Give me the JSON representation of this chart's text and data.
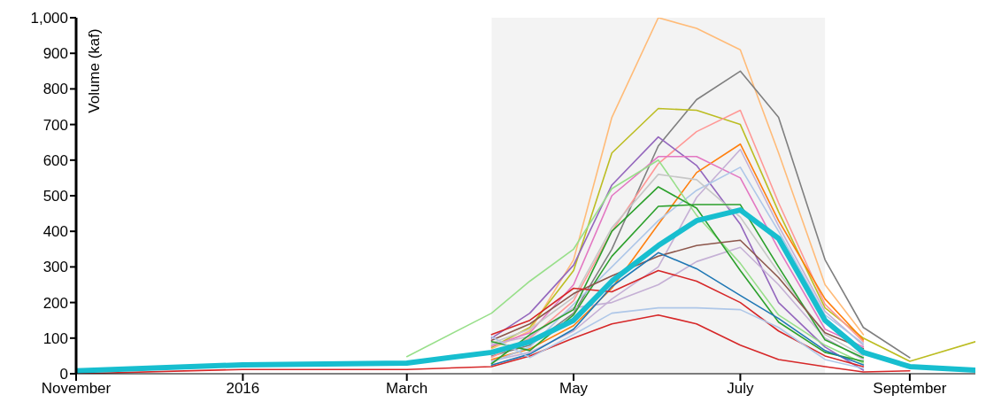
{
  "chart_data": {
    "type": "line",
    "ylabel": "Volume (kaf)",
    "x": [
      "2015-11-01",
      "2016-01-01",
      "2016-03-01",
      "2016-04-01",
      "2016-04-15",
      "2016-05-01",
      "2016-05-15",
      "2016-06-01",
      "2016-06-15",
      "2016-07-01",
      "2016-07-15",
      "2016-08-01",
      "2016-08-15",
      "2016-09-01",
      "2016-09-25"
    ],
    "xlim": [
      "2015-11-01",
      "2016-09-25"
    ],
    "xticks": [
      {
        "value": "2015-11-01",
        "label": "November"
      },
      {
        "value": "2016-01-01",
        "label": "2016"
      },
      {
        "value": "2016-03-01",
        "label": "March"
      },
      {
        "value": "2016-05-01",
        "label": "May"
      },
      {
        "value": "2016-07-01",
        "label": "July"
      },
      {
        "value": "2016-09-01",
        "label": "September"
      }
    ],
    "ylim": [
      0,
      1000
    ],
    "yticks": [
      0,
      100,
      200,
      300,
      400,
      500,
      600,
      700,
      800,
      900,
      {
        "value": 1000,
        "label": "1,000"
      }
    ],
    "grid": false,
    "bands": [
      {
        "axis": "x",
        "from": "2016-04-01",
        "to": "2016-08-01",
        "color": "#f3f3f3"
      }
    ],
    "series": [
      {
        "color": "#ffbb78",
        "values": [
          null,
          null,
          null,
          70,
          120,
          320,
          720,
          1000,
          970,
          910,
          620,
          250,
          110,
          null,
          null
        ]
      },
      {
        "color": "#7f7f7f",
        "values": [
          null,
          null,
          null,
          50,
          80,
          170,
          350,
          640,
          770,
          850,
          720,
          320,
          130,
          45,
          null
        ]
      },
      {
        "color": "#bcbd22",
        "values": [
          null,
          null,
          null,
          74,
          130,
          290,
          620,
          745,
          740,
          700,
          455,
          185,
          100,
          35,
          90
        ]
      },
      {
        "color": "#ff9896",
        "values": [
          null,
          null,
          null,
          46,
          100,
          205,
          400,
          590,
          680,
          740,
          480,
          195,
          90,
          null,
          null
        ]
      },
      {
        "color": "#9467bd",
        "values": [
          null,
          null,
          null,
          100,
          170,
          305,
          530,
          665,
          585,
          420,
          200,
          75,
          10,
          null,
          null
        ]
      },
      {
        "color": "#ff7f0e",
        "values": [
          null,
          null,
          null,
          40,
          70,
          135,
          240,
          420,
          565,
          645,
          430,
          210,
          95,
          null,
          null
        ]
      },
      {
        "color": "#e377c2",
        "values": [
          null,
          null,
          null,
          78,
          115,
          250,
          500,
          610,
          610,
          550,
          350,
          125,
          75,
          null,
          null
        ]
      },
      {
        "color": "#c5b0d5",
        "values": [
          null,
          null,
          null,
          36,
          60,
          120,
          210,
          300,
          495,
          630,
          415,
          175,
          80,
          null,
          null
        ]
      },
      {
        "color": "#c5b0d5",
        "values": [
          null,
          null,
          null,
          82,
          105,
          185,
          200,
          250,
          315,
          355,
          250,
          100,
          40,
          null,
          null
        ]
      },
      {
        "color": "#aec7e8",
        "values": [
          null,
          null,
          null,
          32,
          75,
          195,
          300,
          430,
          515,
          580,
          400,
          165,
          85,
          null,
          null
        ]
      },
      {
        "color": "#98df8a",
        "values": [
          null,
          null,
          48,
          170,
          260,
          350,
          520,
          600,
          445,
          310,
          165,
          80,
          30,
          null,
          null
        ]
      },
      {
        "color": "#c7c7c7",
        "values": [
          null,
          null,
          null,
          86,
          125,
          215,
          410,
          560,
          545,
          440,
          285,
          110,
          50,
          null,
          null
        ]
      },
      {
        "color": "#2ca02c",
        "values": [
          null,
          null,
          null,
          28,
          110,
          180,
          400,
          525,
          465,
          290,
          145,
          60,
          35,
          null,
          null
        ]
      },
      {
        "color": "#2ca02c",
        "values": [
          null,
          null,
          null,
          90,
          65,
          165,
          330,
          470,
          475,
          475,
          300,
          95,
          45,
          null,
          null
        ]
      },
      {
        "color": "#8c564b",
        "values": [
          null,
          null,
          null,
          94,
          140,
          225,
          275,
          330,
          360,
          375,
          270,
          115,
          70,
          null,
          null
        ]
      },
      {
        "color": "#1f77b4",
        "values": [
          null,
          null,
          null,
          24,
          55,
          125,
          245,
          340,
          295,
          220,
          155,
          65,
          25,
          null,
          null
        ]
      },
      {
        "color": "#d62728",
        "values": [
          null,
          null,
          null,
          110,
          150,
          240,
          230,
          290,
          260,
          200,
          120,
          50,
          20,
          null,
          null
        ]
      },
      {
        "color": "#d62728",
        "values": [
          0,
          12,
          12,
          20,
          50,
          100,
          140,
          165,
          140,
          80,
          40,
          20,
          5,
          8,
          null
        ]
      },
      {
        "color": "#aec7e8",
        "values": [
          null,
          null,
          null,
          104,
          45,
          110,
          170,
          185,
          185,
          180,
          130,
          40,
          15,
          null,
          null
        ]
      },
      {
        "color": "#17becf",
        "values": [
          8,
          25,
          30,
          60,
          90,
          150,
          260,
          360,
          430,
          460,
          380,
          150,
          60,
          20,
          10
        ]
      }
    ]
  }
}
